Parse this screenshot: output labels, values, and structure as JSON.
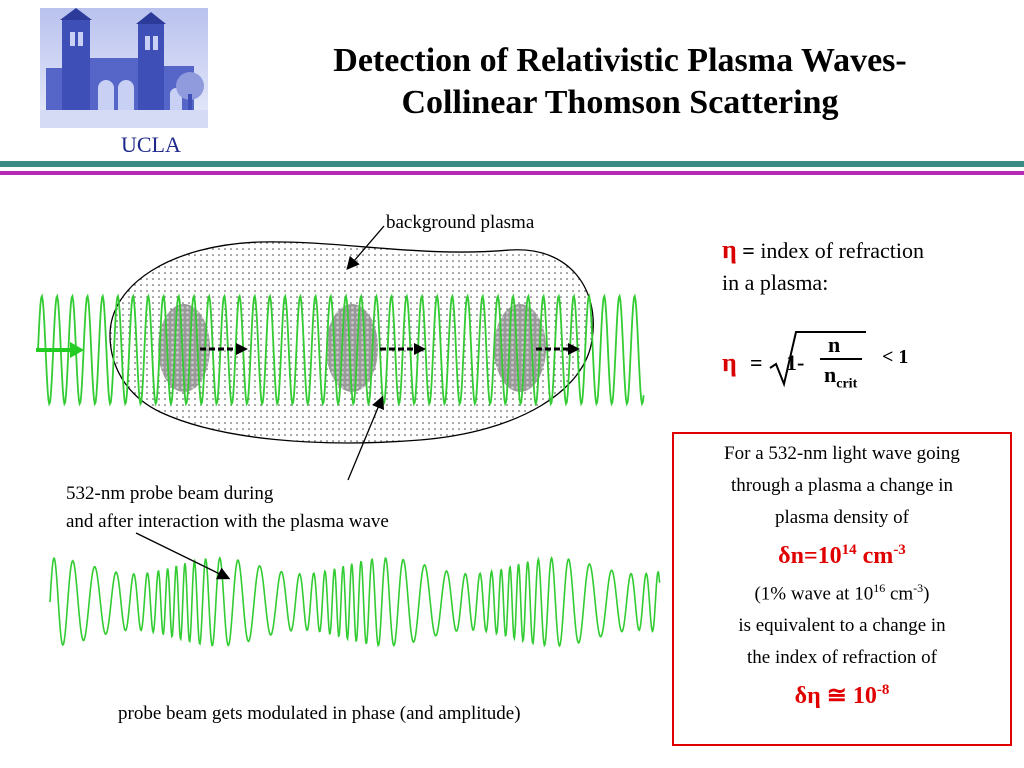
{
  "logo": {
    "text": "UCLA",
    "icon": "ucla-royce-hall-icon"
  },
  "title": {
    "line1": "Detection of Relativistic Plasma Waves-",
    "line2": "Collinear Thomson Scattering"
  },
  "colors": {
    "teal_rule": "#3a8b86",
    "magenta_rule": "#b42ab4",
    "wave_green": "#33cc33",
    "accent_red": "#e00000"
  },
  "diagram": {
    "background_label": "background plasma",
    "probe_label_line1": "532-nm probe beam during",
    "probe_label_line2": "and after interaction with the plasma wave",
    "modulated_label": "probe beam gets modulated in phase (and amplitude)"
  },
  "refraction": {
    "eta": "η",
    "equals": "=",
    "def_text": "index of refraction",
    "def_line2": "in a plasma:",
    "one_minus": "1-",
    "numerator": "n",
    "denominator": "n",
    "denominator_sub": "crit",
    "less_than": "< 1"
  },
  "info_box": {
    "line1": "For a 532-nm light wave going",
    "line2": "through a plasma a change in",
    "line3": "plasma density of",
    "delta_n": "δn=10",
    "delta_n_exp": "14",
    "delta_n_unit": " cm",
    "delta_n_unit_exp": "-3",
    "wave_note_pre": "(1% wave at 10",
    "wave_note_exp": "16",
    "wave_note_unit": " cm",
    "wave_note_unit_exp": "-3",
    "wave_note_post": ")",
    "line5": "is equivalent to a change in",
    "line6": "the index of refraction of",
    "delta_eta": "δη ≅ 10",
    "delta_eta_exp": "-8"
  }
}
